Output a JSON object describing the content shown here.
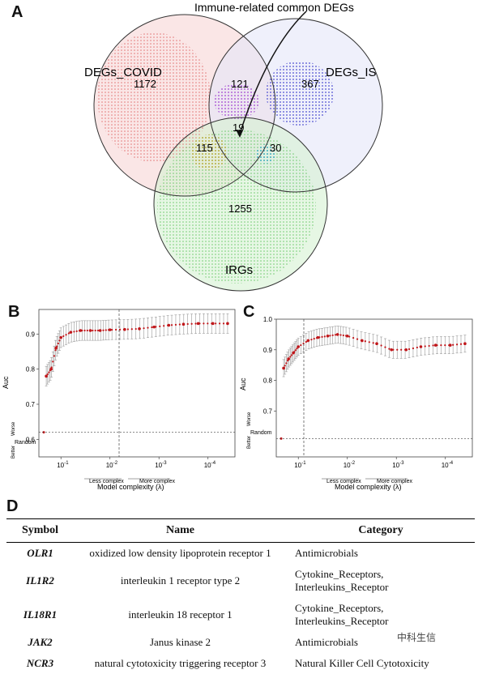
{
  "panels": {
    "a": "A",
    "b": "B",
    "c": "C",
    "d": "D"
  },
  "venn": {
    "annotation": "Immune-related common DEGs",
    "sets": [
      {
        "label": "DEGs_COVID",
        "color": "#f4b6b6",
        "dot": "#e06060"
      },
      {
        "label": "DEGs_IS",
        "color": "#d8dcf4",
        "dot": "#5050d0"
      },
      {
        "label": "IRGs",
        "color": "#b6eab0",
        "dot": "#3cb83c"
      }
    ],
    "counts": {
      "covid_only": "1172",
      "is_only": "367",
      "irg_only": "1255",
      "covid_is": "121",
      "covid_irg": "115",
      "is_irg": "30",
      "all": "19"
    }
  },
  "plot_b": {
    "ylabel": "Auc",
    "xlabel": "Model complexity (λ)",
    "yticks": [
      "0.9",
      "0.8",
      "0.7",
      "0.6"
    ],
    "xticks": [
      "10",
      "10",
      "10",
      "10"
    ],
    "xtick_exp": [
      "-1",
      "-2",
      "-3",
      "-4"
    ],
    "random_label": "Random",
    "better": "Better",
    "worse": "Worse",
    "less": "Less complex",
    "more": "More complex"
  },
  "plot_c": {
    "ylabel": "Auc",
    "xlabel": "Model complexity (λ)",
    "yticks": [
      "1.0",
      "0.9",
      "0.8",
      "0.7"
    ],
    "xticks": [
      "10",
      "10",
      "10",
      "10"
    ],
    "xtick_exp": [
      "-1",
      "-2",
      "-3",
      "-4"
    ],
    "random_label": "Random",
    "better": "Better",
    "worse": "Worse",
    "less": "Less complex",
    "more": "More complex"
  },
  "chart_data": [
    {
      "type": "line",
      "ylabel": "Auc",
      "xlabel": "Model complexity (λ)",
      "x_log_lambda": [
        -1.3,
        -1.2,
        -1.1,
        -1.0,
        -0.8,
        -0.6,
        -0.4,
        -0.2,
        0.0,
        0.3,
        0.6,
        0.9,
        1.2,
        1.5,
        1.8,
        2.1,
        2.4
      ],
      "values": [
        0.78,
        0.8,
        0.86,
        0.89,
        0.905,
        0.91,
        0.91,
        0.91,
        0.912,
        0.913,
        0.915,
        0.92,
        0.925,
        0.928,
        0.93,
        0.93,
        0.93
      ],
      "random": 0.62,
      "ylim": [
        0.55,
        0.97
      ]
    },
    {
      "type": "line",
      "ylabel": "Auc",
      "xlabel": "Model complexity (λ)",
      "x_log_lambda": [
        -1.3,
        -1.2,
        -1.1,
        -1.0,
        -0.8,
        -0.6,
        -0.4,
        -0.2,
        0.0,
        0.3,
        0.6,
        0.9,
        1.2,
        1.5,
        1.8,
        2.1,
        2.4
      ],
      "values": [
        0.84,
        0.87,
        0.89,
        0.91,
        0.93,
        0.94,
        0.945,
        0.95,
        0.945,
        0.93,
        0.92,
        0.9,
        0.9,
        0.91,
        0.915,
        0.915,
        0.92
      ],
      "random": 0.61,
      "ylim": [
        0.55,
        1.0
      ]
    }
  ],
  "table": {
    "headers": [
      "Symbol",
      "Name",
      "Category"
    ],
    "rows": [
      {
        "symbol": "OLR1",
        "name": "oxidized low density lipoprotein receptor 1",
        "category": "Antimicrobials"
      },
      {
        "symbol": "IL1R2",
        "name": "interleukin 1 receptor type 2",
        "category": "Cytokine_Receptors, Interleukins_Receptor"
      },
      {
        "symbol": "IL18R1",
        "name": "interleukin 18 receptor 1",
        "category": "Cytokine_Receptors, Interleukins_Receptor"
      },
      {
        "symbol": "JAK2",
        "name": "Janus kinase 2",
        "category": "Antimicrobials"
      },
      {
        "symbol": "NCR3",
        "name": "natural cytotoxicity triggering receptor 3",
        "category": "Natural Killer Cell Cytotoxicity"
      }
    ]
  },
  "watermark": "中科生信"
}
